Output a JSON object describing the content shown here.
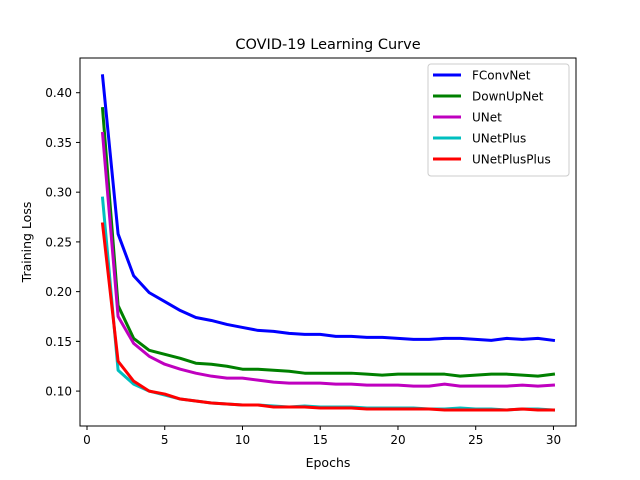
{
  "chart_data": {
    "type": "line",
    "title": "COVID-19 Learning Curve",
    "xlabel": "Epochs",
    "ylabel": "Training Loss",
    "xlim": [
      -0.45,
      31.45
    ],
    "ylim": [
      0.0649,
      0.4349
    ],
    "xticks": [
      0,
      5,
      10,
      15,
      20,
      25,
      30
    ],
    "yticks": [
      0.1,
      0.15,
      0.2,
      0.25,
      0.3,
      0.35,
      0.4
    ],
    "yticklabels": [
      "0.10",
      "0.15",
      "0.20",
      "0.25",
      "0.30",
      "0.35",
      "0.40"
    ],
    "grid": false,
    "legend_position": "top-right",
    "x": [
      1,
      2,
      3,
      4,
      5,
      6,
      7,
      8,
      9,
      10,
      11,
      12,
      13,
      14,
      15,
      16,
      17,
      18,
      19,
      20,
      21,
      22,
      23,
      24,
      25,
      26,
      27,
      28,
      29,
      30
    ],
    "series": [
      {
        "name": "FConvNet",
        "color": "#0000ff",
        "values": [
          0.417,
          0.258,
          0.216,
          0.199,
          0.19,
          0.181,
          0.174,
          0.171,
          0.167,
          0.164,
          0.161,
          0.16,
          0.158,
          0.157,
          0.157,
          0.155,
          0.155,
          0.154,
          0.154,
          0.153,
          0.152,
          0.152,
          0.153,
          0.153,
          0.152,
          0.151,
          0.153,
          0.152,
          0.153,
          0.151
        ]
      },
      {
        "name": "DownUpNet",
        "color": "#008000",
        "values": [
          0.384,
          0.186,
          0.153,
          0.141,
          0.137,
          0.133,
          0.128,
          0.127,
          0.125,
          0.122,
          0.122,
          0.121,
          0.12,
          0.118,
          0.118,
          0.118,
          0.118,
          0.117,
          0.116,
          0.117,
          0.117,
          0.117,
          0.117,
          0.115,
          0.116,
          0.117,
          0.117,
          0.116,
          0.115,
          0.117
        ]
      },
      {
        "name": "UNet",
        "color": "#bf00bf",
        "values": [
          0.359,
          0.175,
          0.148,
          0.135,
          0.127,
          0.122,
          0.118,
          0.115,
          0.113,
          0.113,
          0.111,
          0.109,
          0.108,
          0.108,
          0.108,
          0.107,
          0.107,
          0.106,
          0.106,
          0.106,
          0.105,
          0.105,
          0.107,
          0.105,
          0.105,
          0.105,
          0.105,
          0.106,
          0.105,
          0.106
        ]
      },
      {
        "name": "UNetPlus",
        "color": "#00bfbf",
        "values": [
          0.294,
          0.121,
          0.107,
          0.1,
          0.096,
          0.092,
          0.09,
          0.088,
          0.087,
          0.086,
          0.086,
          0.085,
          0.084,
          0.085,
          0.084,
          0.084,
          0.084,
          0.083,
          0.083,
          0.083,
          0.083,
          0.082,
          0.082,
          0.083,
          0.082,
          0.082,
          0.081,
          0.082,
          0.082,
          0.081
        ]
      },
      {
        "name": "UNetPlusPlus",
        "color": "#ff0000",
        "values": [
          0.268,
          0.13,
          0.11,
          0.1,
          0.097,
          0.092,
          0.09,
          0.088,
          0.087,
          0.086,
          0.086,
          0.084,
          0.084,
          0.084,
          0.083,
          0.083,
          0.083,
          0.082,
          0.082,
          0.082,
          0.082,
          0.082,
          0.081,
          0.081,
          0.081,
          0.081,
          0.081,
          0.082,
          0.081,
          0.081
        ]
      }
    ]
  }
}
